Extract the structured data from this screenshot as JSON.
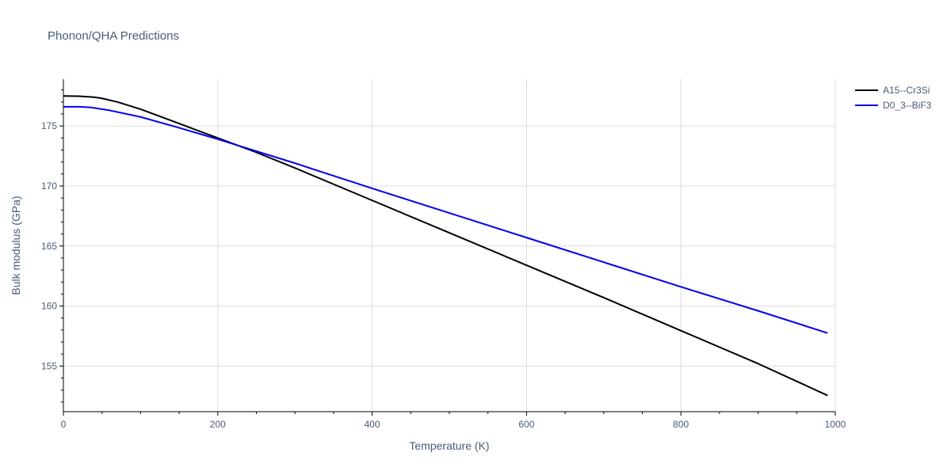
{
  "chart_data": {
    "type": "line",
    "title": "Phonon/QHA Predictions",
    "xlabel": "Temperature (K)",
    "ylabel": "Bulk modulus (GPa)",
    "xlim": [
      0,
      1000
    ],
    "ylim": [
      151.2,
      178.9
    ],
    "x_ticks": [
      0,
      200,
      400,
      600,
      800,
      1000
    ],
    "y_ticks": [
      155,
      160,
      165,
      170,
      175
    ],
    "grid": true,
    "legend_position": "top-right",
    "series": [
      {
        "name": "A15--Cr3Si",
        "color": "#000000",
        "x": [
          0,
          20,
          40,
          50,
          70,
          100,
          150,
          200,
          250,
          300,
          400,
          500,
          600,
          700,
          800,
          900,
          990
        ],
        "y": [
          177.5,
          177.48,
          177.4,
          177.3,
          177.0,
          176.4,
          175.2,
          174.0,
          172.8,
          171.5,
          168.8,
          166.1,
          163.4,
          160.7,
          157.95,
          155.2,
          152.55
        ]
      },
      {
        "name": "D0_3--BiF3",
        "color": "#0000ee",
        "x": [
          0,
          20,
          35,
          60,
          100,
          150,
          200,
          300,
          400,
          500,
          600,
          700,
          800,
          900,
          990
        ],
        "y": [
          176.6,
          176.6,
          176.55,
          176.3,
          175.75,
          174.85,
          173.9,
          171.9,
          169.8,
          167.75,
          165.7,
          163.65,
          161.6,
          159.6,
          157.75
        ]
      }
    ]
  }
}
